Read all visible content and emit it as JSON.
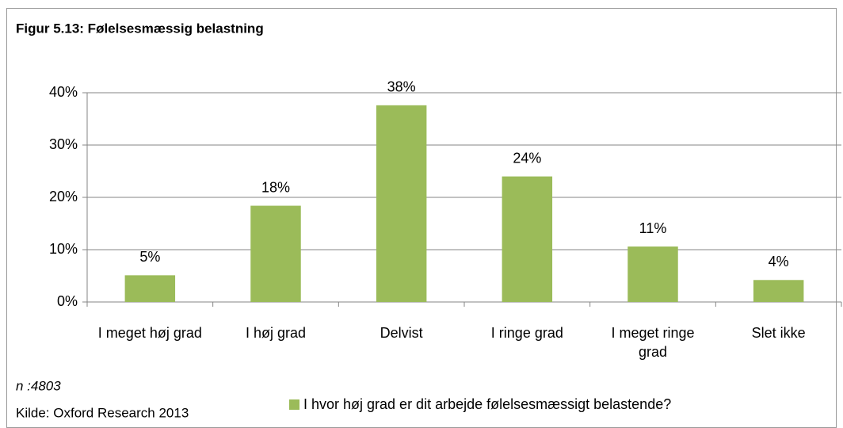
{
  "chart_data": {
    "type": "bar",
    "title": "Figur 5.13: Følelsesmæssig belastning",
    "categories": [
      "I meget høj grad",
      "I høj grad",
      "Delvist",
      "I ringe grad",
      "I meget ringe grad",
      "Slet ikke"
    ],
    "series": [
      {
        "name": "I hvor høj grad er dit arbejde følelsesmæssigt belastende?",
        "color": "#9bbb59",
        "values": [
          5.1,
          18.4,
          37.6,
          24.0,
          10.6,
          4.2
        ],
        "value_labels": [
          "5%",
          "18%",
          "38%",
          "24%",
          "11%",
          "4%"
        ]
      }
    ],
    "ylim": [
      0,
      40
    ],
    "yticks": [
      {
        "value": 0,
        "label": "0%"
      },
      {
        "value": 10,
        "label": "10%"
      },
      {
        "value": 20,
        "label": "20%"
      },
      {
        "value": 30,
        "label": "30%"
      },
      {
        "value": 40,
        "label": "40%"
      }
    ],
    "grid": true,
    "note": "n :4803",
    "source": "Kilde: Oxford Research 2013"
  }
}
